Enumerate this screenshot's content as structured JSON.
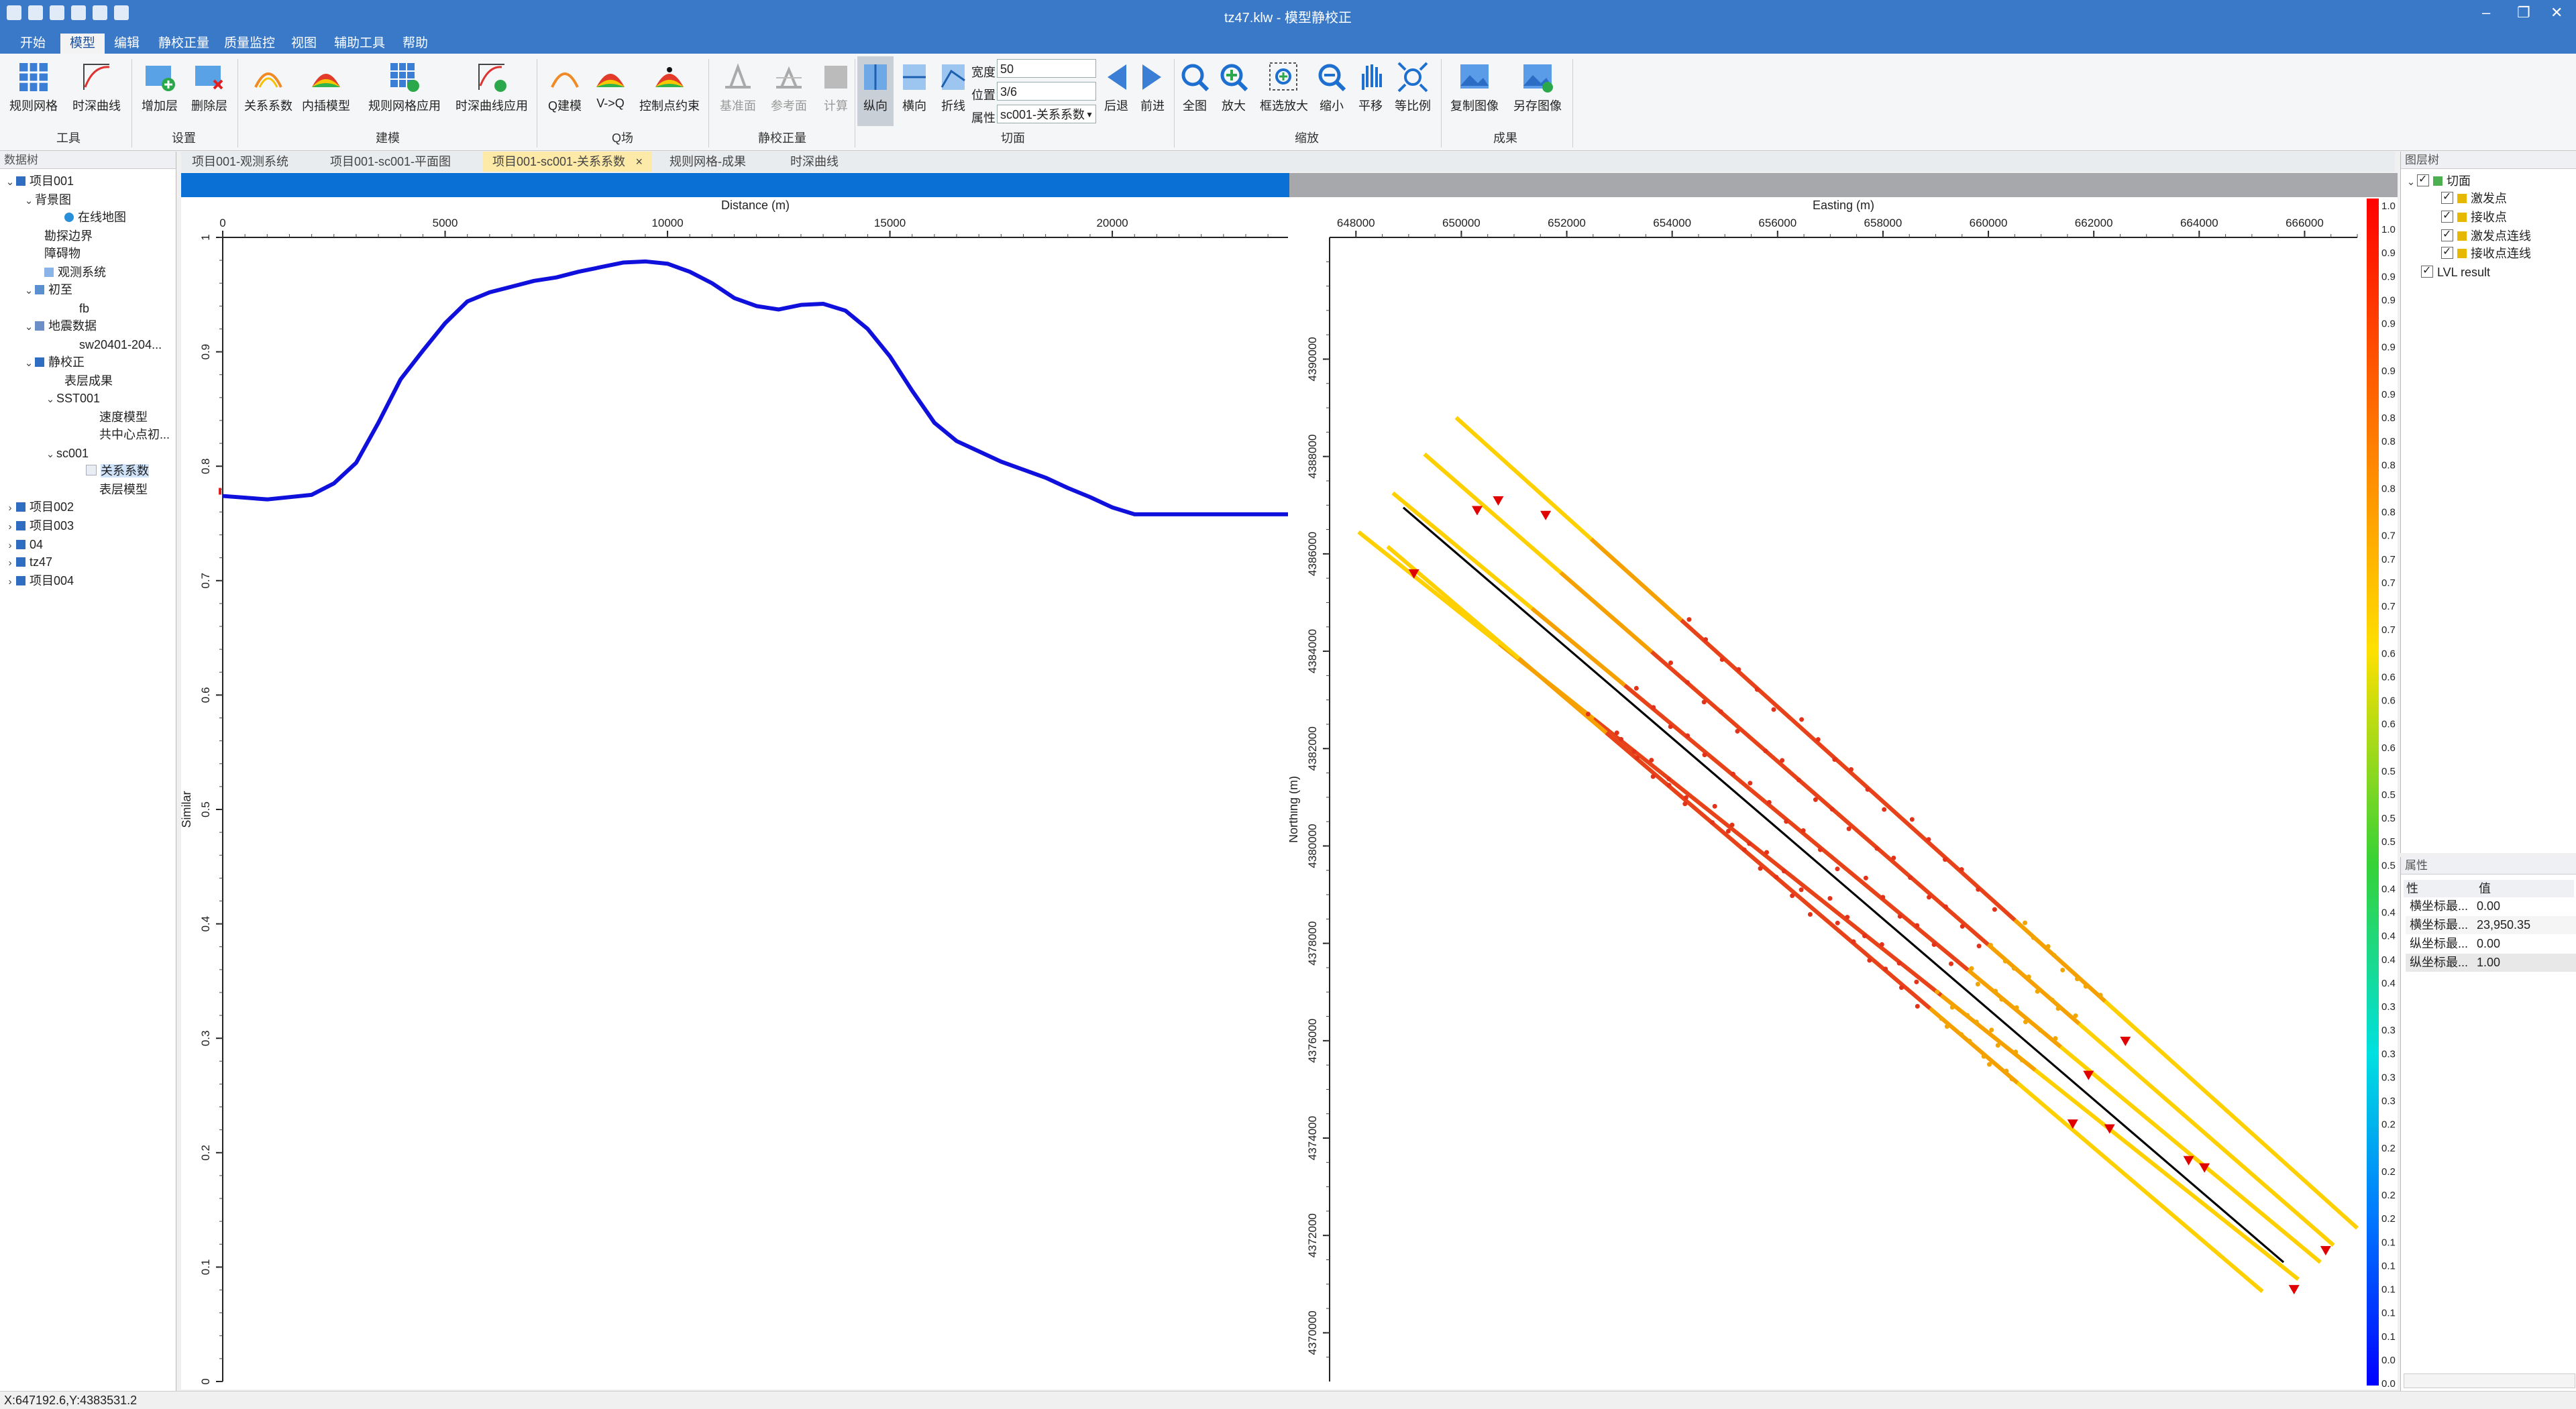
{
  "app": {
    "title": "tz47.klw - 模型静校正"
  },
  "menu": [
    "开始",
    "模型",
    "编辑",
    "静校正量",
    "质量监控",
    "视图",
    "辅助工具",
    "帮助"
  ],
  "menu_active": 1,
  "ribbon": {
    "groups": {
      "tools": "工具",
      "settings": "设置",
      "build": "建模",
      "qfield": "Q场",
      "static": "静校正量",
      "slice": "切面",
      "zoom": "缩放",
      "result": "成果"
    },
    "buttons": {
      "regular_grid": "规则网格",
      "td_curve": "时深曲线",
      "add_layer": "增加层",
      "del_layer": "删除层",
      "relation_coef": "关系系数",
      "interp_model": "内插模型",
      "grid_apply": "规则网格应用",
      "td_apply": "时深曲线应用",
      "q_build": "Q建模",
      "v_to_q": "V->Q",
      "ctrl_constraint": "控制点约束",
      "datum": "基准面",
      "ref_surface": "参考面",
      "compute": "计算",
      "vertical": "纵向",
      "horizontal": "横向",
      "polyline": "折线",
      "back": "后退",
      "forward": "前进",
      "fit_all": "全图",
      "zoom_in": "放大",
      "box_zoom": "框选放大",
      "zoom_out": "缩小",
      "pan": "平移",
      "equal_ratio": "等比例",
      "copy_image": "复制图像",
      "save_image": "另存图像"
    },
    "fields": {
      "width_label": "宽度",
      "width_value": "50",
      "pos_label": "位置",
      "pos_value": "3/6",
      "attr_label": "属性",
      "attr_value": "sc001-关系系数"
    }
  },
  "data_tree": {
    "title": "数据树",
    "items": [
      "项目001",
      "背景图",
      "在线地图",
      "勘探边界",
      "障碍物",
      "观测系统",
      "初至",
      "fb",
      "地震数据",
      "sw20401-204...",
      "静校正",
      "表层成果",
      "SST001",
      "速度模型",
      "共中心点初...",
      "sc001",
      "关系系数",
      "表层模型",
      "项目002",
      "项目003",
      "04",
      "tz47",
      "项目004"
    ]
  },
  "tabs": [
    "项目001-观测系统",
    "项目001-sc001-平面图",
    "项目001-sc001-关系系数",
    "规则网格-成果",
    "时深曲线"
  ],
  "active_tab": 2,
  "tab_close": "×",
  "layer_tree": {
    "title": "图层树",
    "items": [
      "切面",
      "激发点",
      "接收点",
      "激发点连线",
      "接收点连线",
      "LVL result"
    ]
  },
  "properties": {
    "title": "属性",
    "headers": [
      "性",
      "值"
    ],
    "rows": [
      {
        "name": "横坐标最...",
        "value": "0.00"
      },
      {
        "name": "横坐标最...",
        "value": "23,950.35"
      },
      {
        "name": "纵坐标最...",
        "value": "0.00"
      },
      {
        "name": "纵坐标最...",
        "value": "1.00"
      }
    ]
  },
  "status": "X:647192.6,Y:4383531.2",
  "chart_data": [
    {
      "type": "line",
      "xlabel": "Distance (m)",
      "ylabel": "Similar",
      "xlim": [
        0,
        23950
      ],
      "ylim": [
        0,
        1.0
      ],
      "xticks": [
        "0",
        "5000",
        "10000",
        "15000",
        "20000"
      ],
      "yticks": [
        "0",
        "0.1",
        "0.2",
        "0.3",
        "0.4",
        "0.5",
        "0.6",
        "0.7",
        "0.8",
        "0.9",
        "1"
      ],
      "series_color": "#1010dd",
      "x": [
        0,
        1000,
        2000,
        2500,
        3000,
        3500,
        4000,
        4500,
        5000,
        5500,
        6000,
        6500,
        7000,
        7500,
        8000,
        8500,
        9000,
        9500,
        10000,
        10500,
        11000,
        11500,
        12000,
        12500,
        13000,
        13500,
        14000,
        14500,
        15000,
        15500,
        16000,
        16500,
        17000,
        17500,
        18000,
        18500,
        19000,
        19500,
        20000,
        20500,
        21000,
        22000,
        23950
      ],
      "y": [
        0.774,
        0.771,
        0.775,
        0.785,
        0.803,
        0.838,
        0.876,
        0.901,
        0.925,
        0.944,
        0.952,
        0.957,
        0.962,
        0.965,
        0.97,
        0.974,
        0.978,
        0.979,
        0.977,
        0.97,
        0.96,
        0.947,
        0.94,
        0.937,
        0.941,
        0.942,
        0.936,
        0.92,
        0.896,
        0.866,
        0.838,
        0.822,
        0.813,
        0.804,
        0.797,
        0.79,
        0.781,
        0.773,
        0.764,
        0.758,
        0.758,
        0.758,
        0.758
      ]
    },
    {
      "type": "scatter",
      "xlabel": "Easting (m)",
      "ylabel": "Northing (m)",
      "xlim": [
        647500,
        667000
      ],
      "ylim": [
        4369000,
        4392500
      ],
      "xticks": [
        "648000",
        "650000",
        "652000",
        "654000",
        "656000",
        "658000",
        "660000",
        "662000",
        "664000",
        "666000"
      ],
      "yticks": [
        "4370000",
        "4372000",
        "4374000",
        "4376000",
        "4378000",
        "4380000",
        "4382000",
        "4384000",
        "4386000",
        "4388000",
        "4390000"
      ],
      "colorbar_labels": [
        "1.0",
        "1.0",
        "0.9",
        "0.9",
        "0.9",
        "0.9",
        "0.9",
        "0.9",
        "0.9",
        "0.8",
        "0.8",
        "0.8",
        "0.8",
        "0.8",
        "0.7",
        "0.7",
        "0.7",
        "0.7",
        "0.7",
        "0.6",
        "0.6",
        "0.6",
        "0.6",
        "0.6",
        "0.5",
        "0.5",
        "0.5",
        "0.5",
        "0.5",
        "0.4",
        "0.4",
        "0.4",
        "0.4",
        "0.4",
        "0.3",
        "0.3",
        "0.3",
        "0.3",
        "0.3",
        "0.2",
        "0.2",
        "0.2",
        "0.2",
        "0.2",
        "0.1",
        "0.1",
        "0.1",
        "0.1",
        "0.1",
        "0.0",
        "0.0"
      ],
      "lines": [
        {
          "start": [
            648050,
            4386450
          ],
          "end": [
            665880,
            4371100
          ],
          "color": "#ffd000"
        },
        {
          "start": [
            648700,
            4387250
          ],
          "end": [
            666300,
            4371450
          ],
          "color": "#ffd000"
        },
        {
          "start": [
            649300,
            4388050
          ],
          "end": [
            666550,
            4371800
          ],
          "color": "#ffd000"
        },
        {
          "start": [
            649900,
            4388800
          ],
          "end": [
            667000,
            4372150
          ],
          "color": "#ffd000"
        },
        {
          "start": [
            648600,
            4386150
          ],
          "end": [
            665200,
            4370850
          ],
          "color": "#ffd000"
        },
        {
          "start": [
            648900,
            4386950
          ],
          "end": [
            665600,
            4371450
          ],
          "color": "#000000"
        }
      ],
      "red_segment_range": [
        0.25,
        0.62
      ],
      "triangles": [
        [
          649100,
          4385600
        ],
        [
          650300,
          4386900
        ],
        [
          650700,
          4387100
        ],
        [
          651600,
          4386800
        ],
        [
          662600,
          4376000
        ],
        [
          661900,
          4375300
        ],
        [
          663800,
          4373550
        ],
        [
          664100,
          4373400
        ],
        [
          666400,
          4371700
        ],
        [
          665800,
          4370900
        ],
        [
          662300,
          4374200
        ],
        [
          661600,
          4374300
        ]
      ]
    }
  ]
}
